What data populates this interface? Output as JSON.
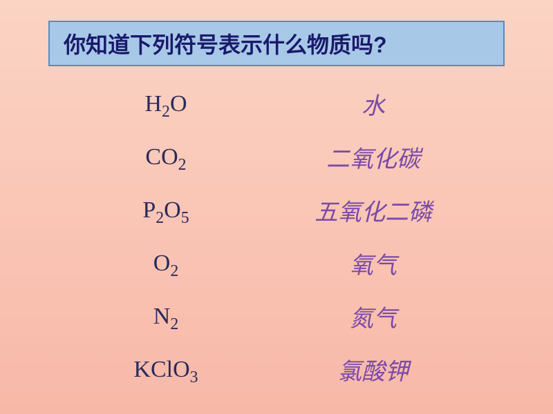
{
  "background": {
    "gradient_start": "#fbd4c4",
    "gradient_end": "#f8b8a8"
  },
  "title": {
    "text": "你知道下列符号表示什么物质吗?",
    "background_color": "#a8c8e8",
    "border_color": "#5a8ac0",
    "text_color": "#1a1a6a",
    "fontsize": 32
  },
  "formula_style": {
    "color": "#2a2a5a",
    "fontsize": 34
  },
  "name_style": {
    "color": "#7a4aa8",
    "fontsize": 34
  },
  "rows": [
    {
      "formula_html": "H<sub>2</sub>O",
      "name": "水"
    },
    {
      "formula_html": "CO<sub>2</sub>",
      "name": "二氧化碳"
    },
    {
      "formula_html": "P<sub>2</sub>O<sub>5</sub>",
      "name": "五氧化二磷"
    },
    {
      "formula_html": "O<sub>2</sub>",
      "name": "氧气"
    },
    {
      "formula_html": "N<sub>2</sub>",
      "name": "氮气"
    },
    {
      "formula_html": "KClO<sub>3</sub>",
      "name": "氯酸钾"
    }
  ]
}
